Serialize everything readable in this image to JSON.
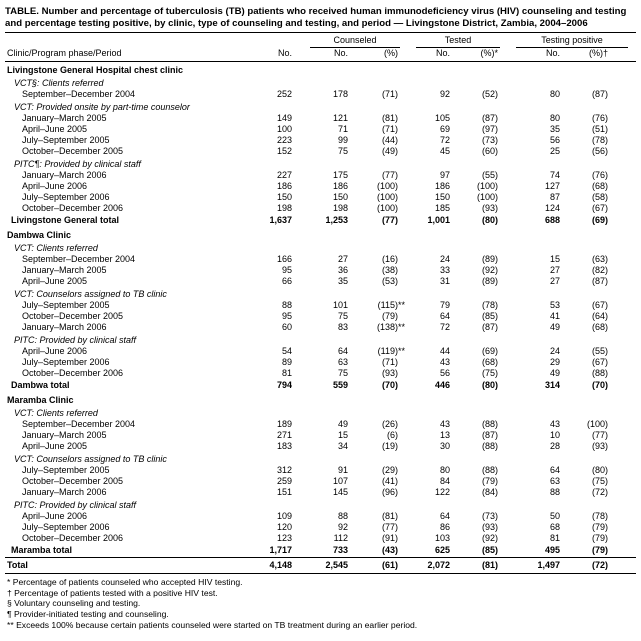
{
  "page": {
    "background": "#ffffff",
    "text_color": "#000000",
    "rule_color": "#000000"
  },
  "title": "TABLE. Number and percentage of tuberculosis (TB) patients who received human immunodeficiency virus (HIV) counseling and testing and percentage testing positive, by clinic, type of counseling and testing, and period — Livingstone District, Zambia, 2004–2006",
  "columns": {
    "stub": "Clinic/Program phase/Period",
    "no": "No.",
    "spanners": [
      {
        "label": "Counseled",
        "sub": [
          "No.",
          "(%)"
        ]
      },
      {
        "label": "Tested",
        "sub": [
          "No.",
          "(%)*"
        ]
      },
      {
        "label": "Testing positive",
        "sub": [
          "No.",
          "(%)†"
        ]
      }
    ]
  },
  "rows": [
    {
      "type": "section",
      "label": "Livingstone General Hospital chest clinic"
    },
    {
      "type": "phase",
      "label": "VCT§: Clients referred"
    },
    {
      "type": "period",
      "label": "September–December 2004",
      "values": [
        "252",
        "178",
        "(71)",
        "92",
        "(52)",
        "80",
        "(87)"
      ]
    },
    {
      "type": "phase",
      "label": "VCT: Provided onsite by part-time counselor"
    },
    {
      "type": "period",
      "label": "January–March 2005",
      "values": [
        "149",
        "121",
        "(81)",
        "105",
        "(87)",
        "80",
        "(76)"
      ]
    },
    {
      "type": "period",
      "label": "April–June 2005",
      "values": [
        "100",
        "71",
        "(71)",
        "69",
        "(97)",
        "35",
        "(51)"
      ]
    },
    {
      "type": "period",
      "label": "July–September 2005",
      "values": [
        "223",
        "99",
        "(44)",
        "72",
        "(73)",
        "56",
        "(78)"
      ]
    },
    {
      "type": "period",
      "label": "October–December 2005",
      "values": [
        "152",
        "75",
        "(49)",
        "45",
        "(60)",
        "25",
        "(56)"
      ]
    },
    {
      "type": "phase",
      "label": "PITC¶: Provided by clinical staff"
    },
    {
      "type": "period",
      "label": "January–March 2006",
      "values": [
        "227",
        "175",
        "(77)",
        "97",
        "(55)",
        "74",
        "(76)"
      ]
    },
    {
      "type": "period",
      "label": "April–June 2006",
      "values": [
        "186",
        "186",
        "(100)",
        "186",
        "(100)",
        "127",
        "(68)"
      ]
    },
    {
      "type": "period",
      "label": "July–September 2006",
      "values": [
        "150",
        "150",
        "(100)",
        "150",
        "(100)",
        "87",
        "(58)"
      ]
    },
    {
      "type": "period",
      "label": "October–December 2006",
      "values": [
        "198",
        "198",
        "(100)",
        "185",
        "(93)",
        "124",
        "(67)"
      ]
    },
    {
      "type": "total",
      "label": "Livingstone General total",
      "values": [
        "1,637",
        "1,253",
        "(77)",
        "1,001",
        "(80)",
        "688",
        "(69)"
      ]
    },
    {
      "type": "section",
      "label": "Dambwa Clinic"
    },
    {
      "type": "phase",
      "label": "VCT: Clients referred"
    },
    {
      "type": "period",
      "label": "September–December 2004",
      "values": [
        "166",
        "27",
        "(16)",
        "24",
        "(89)",
        "15",
        "(63)"
      ]
    },
    {
      "type": "period",
      "label": "January–March 2005",
      "values": [
        "95",
        "36",
        "(38)",
        "33",
        "(92)",
        "27",
        "(82)"
      ]
    },
    {
      "type": "period",
      "label": "April–June 2005",
      "values": [
        "66",
        "35",
        "(53)",
        "31",
        "(89)",
        "27",
        "(87)"
      ]
    },
    {
      "type": "phase",
      "label": "VCT: Counselors assigned to TB clinic"
    },
    {
      "type": "period",
      "label": "July–September 2005",
      "values": [
        "88",
        "101",
        "(115)**",
        "79",
        "(78)",
        "53",
        "(67)"
      ]
    },
    {
      "type": "period",
      "label": "October–December 2005",
      "values": [
        "95",
        "75",
        "(79)",
        "64",
        "(85)",
        "41",
        "(64)"
      ]
    },
    {
      "type": "period",
      "label": "January–March 2006",
      "values": [
        "60",
        "83",
        "(138)**",
        "72",
        "(87)",
        "49",
        "(68)"
      ]
    },
    {
      "type": "phase",
      "label": "PITC: Provided by clinical staff"
    },
    {
      "type": "period",
      "label": "April–June 2006",
      "values": [
        "54",
        "64",
        "(119)**",
        "44",
        "(69)",
        "24",
        "(55)"
      ]
    },
    {
      "type": "period",
      "label": "July–September 2006",
      "values": [
        "89",
        "63",
        "(71)",
        "43",
        "(68)",
        "29",
        "(67)"
      ]
    },
    {
      "type": "period",
      "label": "October–December 2006",
      "values": [
        "81",
        "75",
        "(93)",
        "56",
        "(75)",
        "49",
        "(88)"
      ]
    },
    {
      "type": "total",
      "label": "Dambwa total",
      "values": [
        "794",
        "559",
        "(70)",
        "446",
        "(80)",
        "314",
        "(70)"
      ]
    },
    {
      "type": "section",
      "label": "Maramba Clinic"
    },
    {
      "type": "phase",
      "label": "VCT: Clients referred"
    },
    {
      "type": "period",
      "label": "September–December 2004",
      "values": [
        "189",
        "49",
        "(26)",
        "43",
        "(88)",
        "43",
        "(100)"
      ]
    },
    {
      "type": "period",
      "label": "January–March 2005",
      "values": [
        "271",
        "15",
        "(6)",
        "13",
        "(87)",
        "10",
        "(77)"
      ]
    },
    {
      "type": "period",
      "label": "April–June 2005",
      "values": [
        "183",
        "34",
        "(19)",
        "30",
        "(88)",
        "28",
        "(93)"
      ]
    },
    {
      "type": "phase",
      "label": "VCT: Counselors assigned to TB clinic"
    },
    {
      "type": "period",
      "label": "July–September 2005",
      "values": [
        "312",
        "91",
        "(29)",
        "80",
        "(88)",
        "64",
        "(80)"
      ]
    },
    {
      "type": "period",
      "label": "October–December 2005",
      "values": [
        "259",
        "107",
        "(41)",
        "84",
        "(79)",
        "63",
        "(75)"
      ]
    },
    {
      "type": "period",
      "label": "January–March 2006",
      "values": [
        "151",
        "145",
        "(96)",
        "122",
        "(84)",
        "88",
        "(72)"
      ]
    },
    {
      "type": "phase",
      "label": "PITC: Provided by clinical staff"
    },
    {
      "type": "period",
      "label": "April–June 2006",
      "values": [
        "109",
        "88",
        "(81)",
        "64",
        "(73)",
        "50",
        "(78)"
      ]
    },
    {
      "type": "period",
      "label": "July–September 2006",
      "values": [
        "120",
        "92",
        "(77)",
        "86",
        "(93)",
        "68",
        "(79)"
      ]
    },
    {
      "type": "period",
      "label": "October–December 2006",
      "values": [
        "123",
        "112",
        "(91)",
        "103",
        "(92)",
        "81",
        "(79)"
      ]
    },
    {
      "type": "total",
      "label": "Maramba total",
      "values": [
        "1,717",
        "733",
        "(43)",
        "625",
        "(85)",
        "495",
        "(79)"
      ]
    },
    {
      "type": "grandtotal",
      "label": "Total",
      "values": [
        "4,148",
        "2,545",
        "(61)",
        "2,072",
        "(81)",
        "1,497",
        "(72)"
      ]
    }
  ],
  "footnotes": [
    "* Percentage of patients counseled who accepted HIV testing.",
    "† Percentage of patients tested with a positive HIV test.",
    "§ Voluntary counseling and testing.",
    "¶ Provider-initiated testing and counseling.",
    "** Exceeds 100% because certain patients counseled were started on TB treatment during an earlier period."
  ]
}
